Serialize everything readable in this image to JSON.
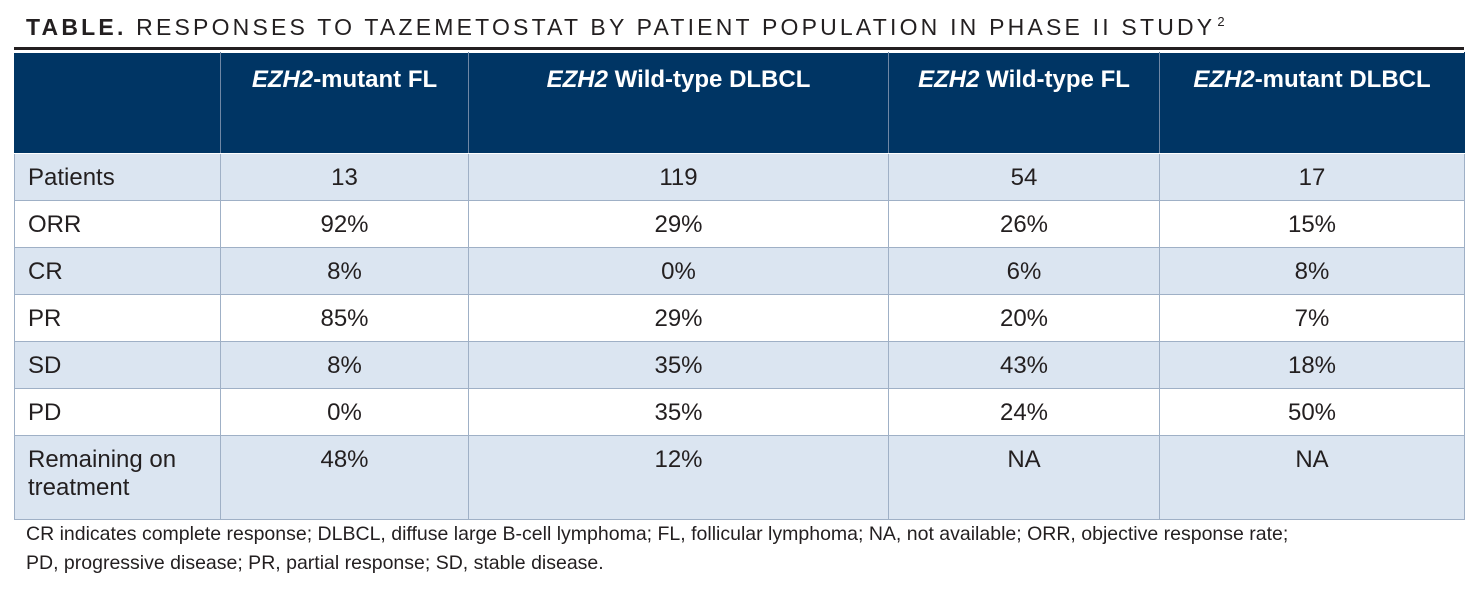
{
  "title": {
    "lead": "TABLE.",
    "text": " RESPONSES TO TAZEMETOSTAT BY PATIENT POPULATION IN PHASE II STUDY",
    "sup": "2"
  },
  "table": {
    "columns": [
      {
        "italic": "EZH2",
        "rest": "-mutant FL"
      },
      {
        "italic": "EZH2",
        "rest": " Wild-type DLBCL"
      },
      {
        "italic": "EZH2",
        "rest": " Wild-type FL"
      },
      {
        "italic": "EZH2",
        "rest": "-mutant DLBCL"
      }
    ],
    "rows": [
      {
        "label": "Patients",
        "values": [
          "13",
          "119",
          "54",
          "17"
        ]
      },
      {
        "label": "ORR",
        "values": [
          "92%",
          "29%",
          "26%",
          "15%"
        ]
      },
      {
        "label": "CR",
        "values": [
          "8%",
          "0%",
          "6%",
          "8%"
        ]
      },
      {
        "label": "PR",
        "values": [
          "85%",
          "29%",
          "20%",
          "7%"
        ]
      },
      {
        "label": "SD",
        "values": [
          "8%",
          "35%",
          "43%",
          "18%"
        ]
      },
      {
        "label": "PD",
        "values": [
          "0%",
          "35%",
          "24%",
          "50%"
        ]
      },
      {
        "label_line1": "Remaining on",
        "label_line2": "treatment",
        "values": [
          "48%",
          "12%",
          "NA",
          "NA"
        ]
      }
    ]
  },
  "footnote": {
    "line1": "CR indicates complete response; DLBCL, diffuse large B-cell lymphoma; FL, follicular lymphoma; NA, not available; ORR, objective response rate;",
    "line2": "PD, progressive disease; PR, partial response; SD, stable disease."
  },
  "colors": {
    "header_bg": "#003564",
    "band_bg": "#dbe5f1",
    "text": "#231f20"
  }
}
